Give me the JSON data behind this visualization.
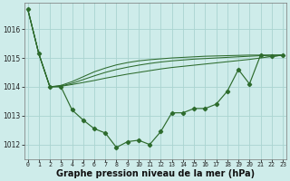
{
  "bg_color": "#ceecea",
  "line_color": "#2d6b2d",
  "grid_color": "#aad4d0",
  "xlabel": "Graphe pression niveau de la mer (hPa)",
  "xlabel_fontsize": 7.0,
  "ylim": [
    1011.5,
    1016.9
  ],
  "xlim": [
    -0.3,
    23.3
  ],
  "yticks": [
    1012,
    1013,
    1014,
    1015,
    1016
  ],
  "xticks": [
    0,
    1,
    2,
    3,
    4,
    5,
    6,
    7,
    8,
    9,
    10,
    11,
    12,
    13,
    14,
    15,
    16,
    17,
    18,
    19,
    20,
    21,
    22,
    23
  ],
  "main_line": [
    1016.7,
    1015.15,
    1014.0,
    1014.0,
    1013.2,
    1012.85,
    1012.55,
    1012.4,
    1011.9,
    1012.1,
    1012.15,
    1012.0,
    1012.45,
    1013.1,
    1013.1,
    1013.25,
    1013.25,
    1013.4,
    1013.85,
    1014.6,
    1014.1,
    1015.1,
    1015.05,
    1015.1
  ],
  "line_upper1": [
    1016.7,
    1015.15,
    1014.0,
    1014.02,
    1014.08,
    1014.15,
    1014.22,
    1014.3,
    1014.37,
    1014.44,
    1014.5,
    1014.56,
    1014.62,
    1014.67,
    1014.71,
    1014.75,
    1014.79,
    1014.83,
    1014.87,
    1014.91,
    1014.95,
    1015.0,
    1015.05,
    1015.1
  ],
  "line_upper2": [
    1016.7,
    1015.15,
    1014.0,
    1014.03,
    1014.12,
    1014.25,
    1014.38,
    1014.5,
    1014.6,
    1014.68,
    1014.75,
    1014.81,
    1014.86,
    1014.9,
    1014.93,
    1014.96,
    1014.98,
    1015.0,
    1015.02,
    1015.04,
    1015.06,
    1015.08,
    1015.1,
    1015.1
  ],
  "line_upper3": [
    1016.7,
    1015.15,
    1014.0,
    1014.05,
    1014.18,
    1014.35,
    1014.52,
    1014.65,
    1014.76,
    1014.84,
    1014.9,
    1014.94,
    1014.97,
    1015.0,
    1015.02,
    1015.04,
    1015.06,
    1015.07,
    1015.08,
    1015.09,
    1015.1,
    1015.1,
    1015.1,
    1015.1
  ]
}
